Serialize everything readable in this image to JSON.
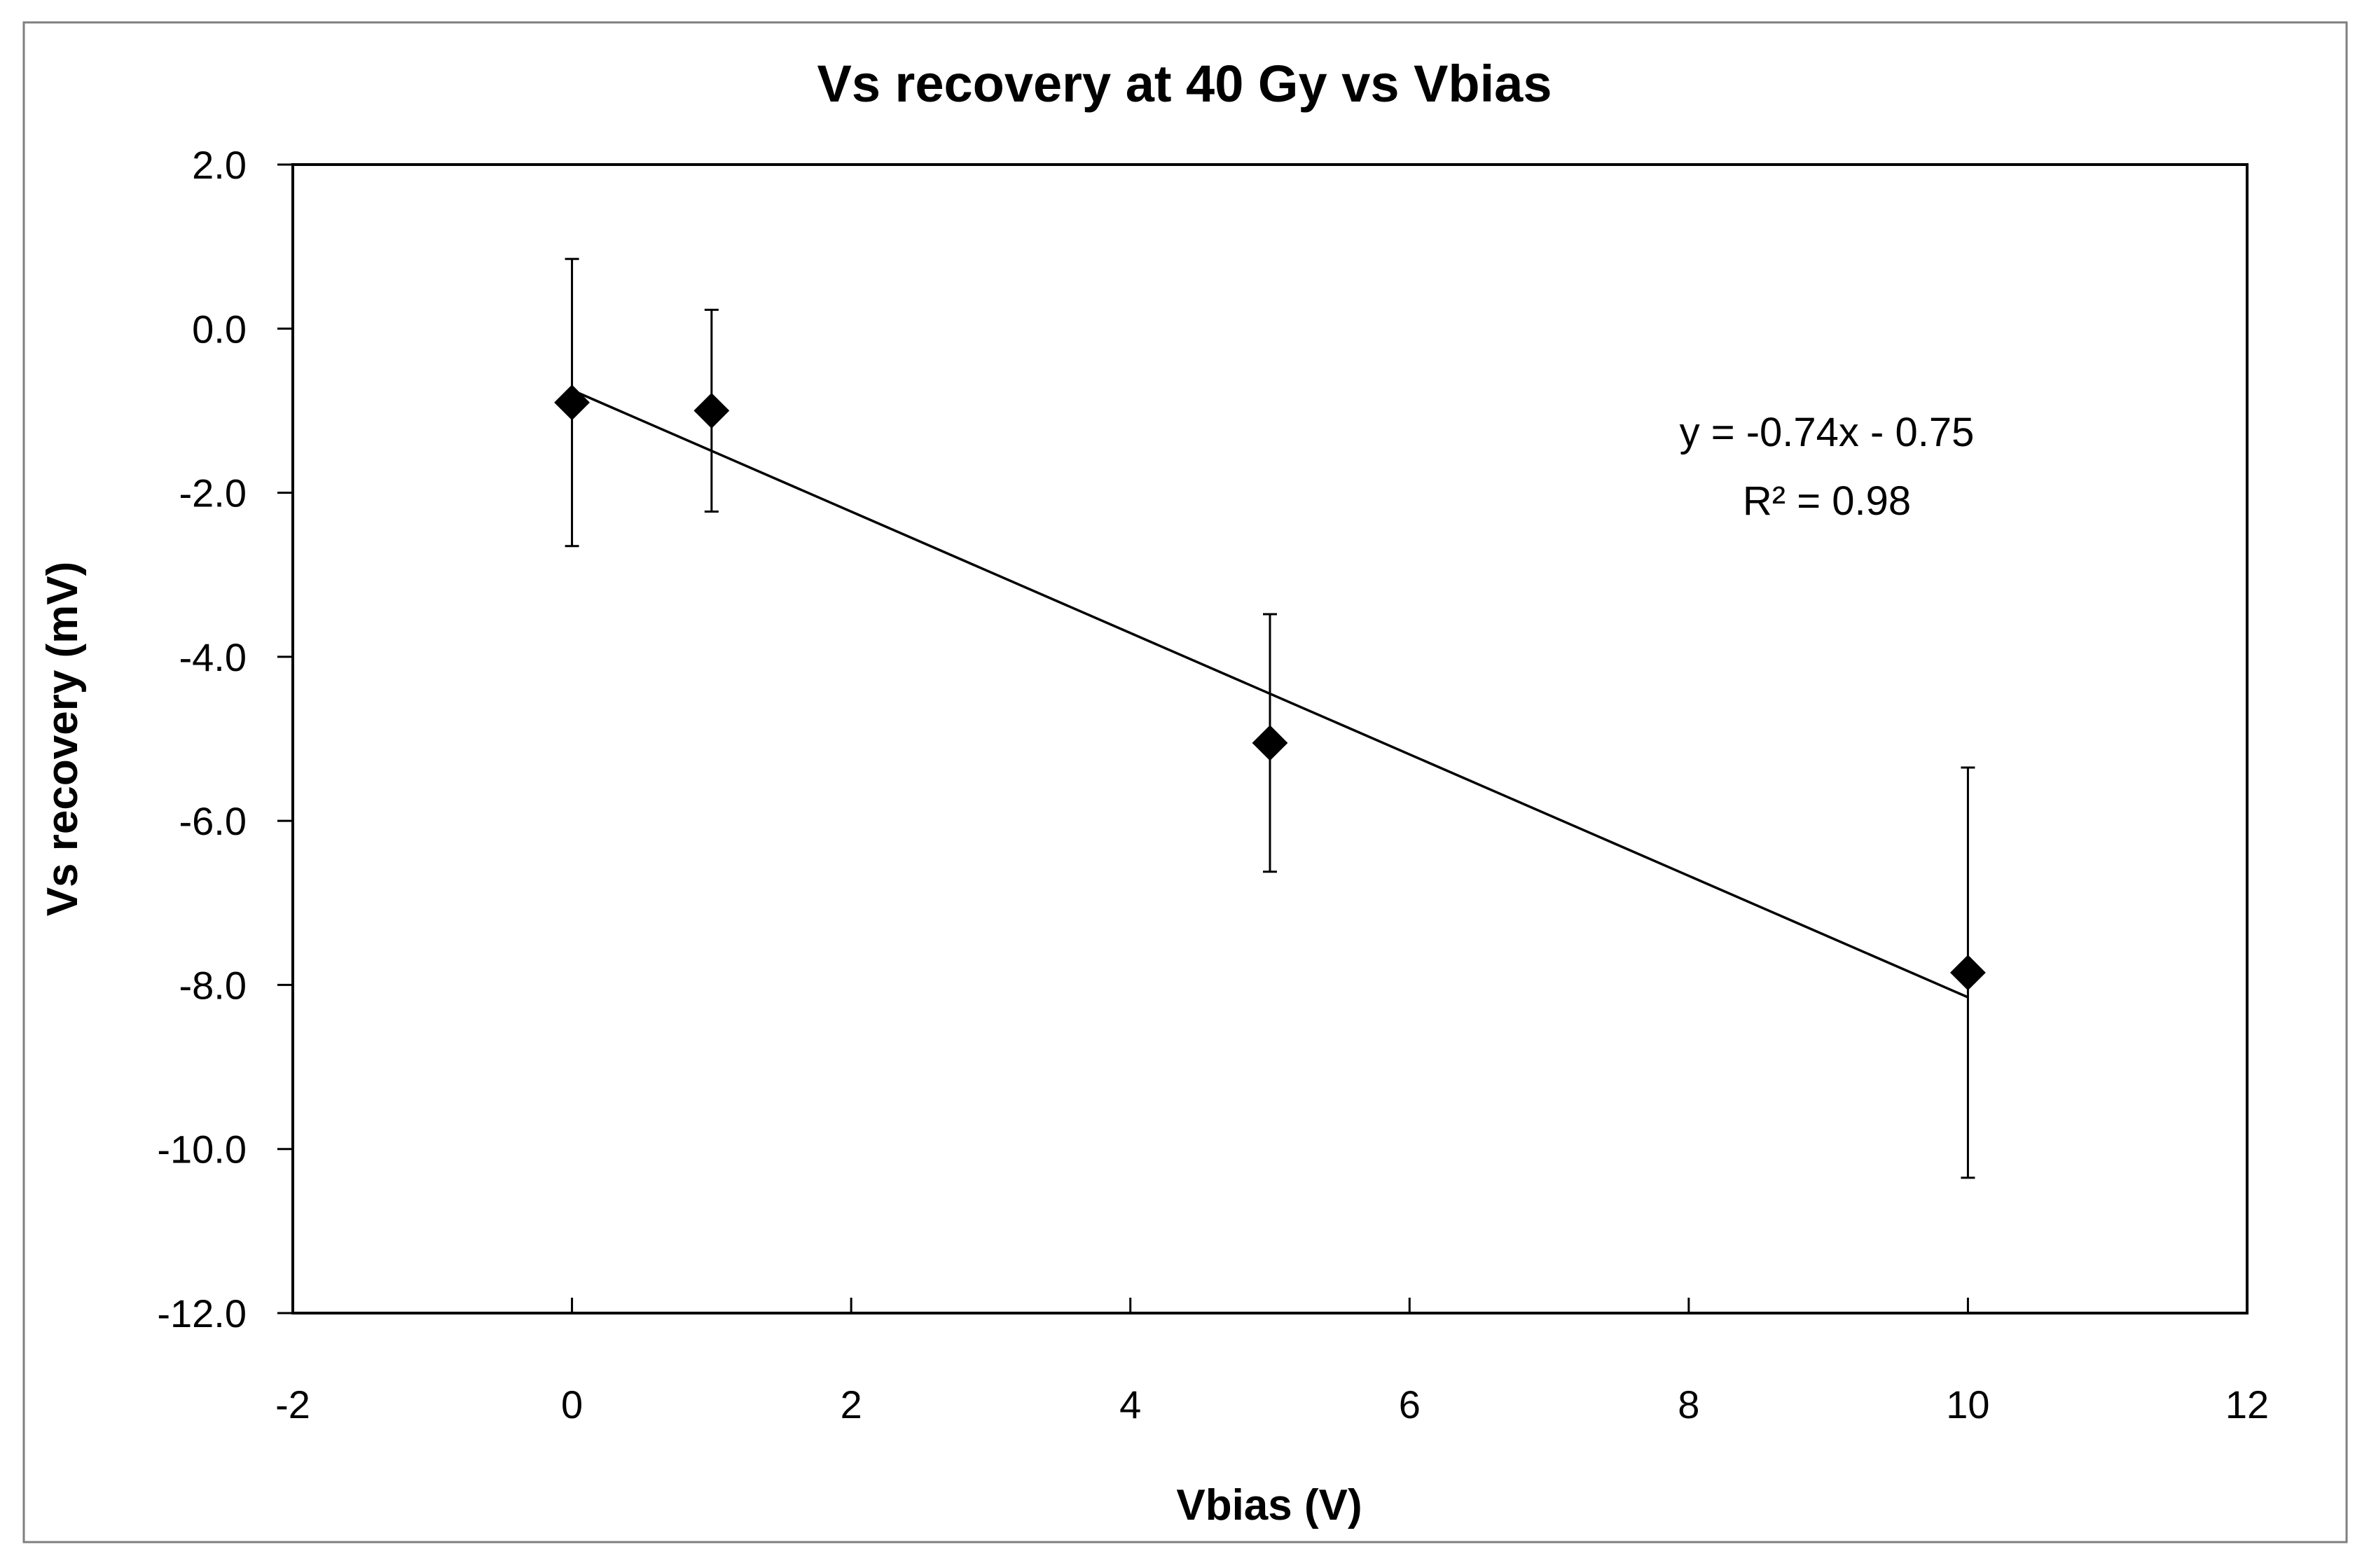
{
  "chart_data": {
    "type": "scatter",
    "title": "Vs recovery at 40 Gy vs Vbias",
    "xlabel": "Vbias (V)",
    "ylabel": "Vs recovery (mV)",
    "xlim": [
      -2,
      12
    ],
    "ylim": [
      -12,
      2
    ],
    "xticks": [
      -2,
      0,
      2,
      4,
      6,
      8,
      10,
      12
    ],
    "yticks": [
      2,
      0,
      -2,
      -4,
      -6,
      -8,
      -10,
      -12
    ],
    "xtick_labels": [
      "-2",
      "0",
      "2",
      "4",
      "6",
      "8",
      "10",
      "12"
    ],
    "ytick_labels": [
      "2.0",
      "0.0",
      "-2.0",
      "-4.0",
      "-6.0",
      "-8.0",
      "-10.0",
      "-12.0"
    ],
    "grid": false,
    "series": [
      {
        "name": "Vs recovery",
        "marker": "diamond",
        "color": "#000000",
        "x": [
          0,
          1,
          5,
          10
        ],
        "y": [
          -0.9,
          -1.0,
          -5.05,
          -7.85
        ],
        "y_err": [
          1.75,
          1.23,
          1.57,
          2.5
        ]
      }
    ],
    "trendline": {
      "type": "linear",
      "slope": -0.74,
      "intercept": -0.75,
      "x_range": [
        0,
        10
      ],
      "equation": "y = -0.74x - 0.75",
      "r_squared": "R² = 0.98"
    }
  }
}
